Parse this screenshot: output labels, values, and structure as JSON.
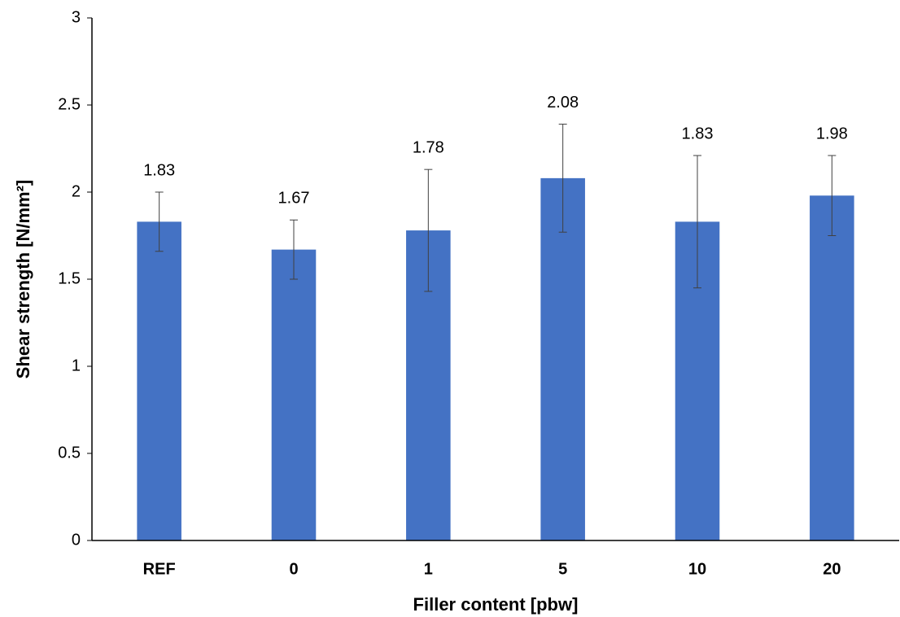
{
  "chart_data": {
    "type": "bar",
    "x_label": "Filler content [pbw]",
    "y_label": "Shear strength [N/mm²]",
    "categories": [
      "REF",
      "0",
      "1",
      "5",
      "10",
      "20"
    ],
    "values": [
      1.83,
      1.67,
      1.78,
      2.08,
      1.83,
      1.98
    ],
    "errors": [
      0.17,
      0.17,
      0.35,
      0.31,
      0.38,
      0.23
    ],
    "color": "#4472c4",
    "ylim": [
      0,
      3
    ],
    "yticks": [
      0,
      0.5,
      1,
      1.5,
      2,
      2.5,
      3
    ],
    "grid": false
  }
}
